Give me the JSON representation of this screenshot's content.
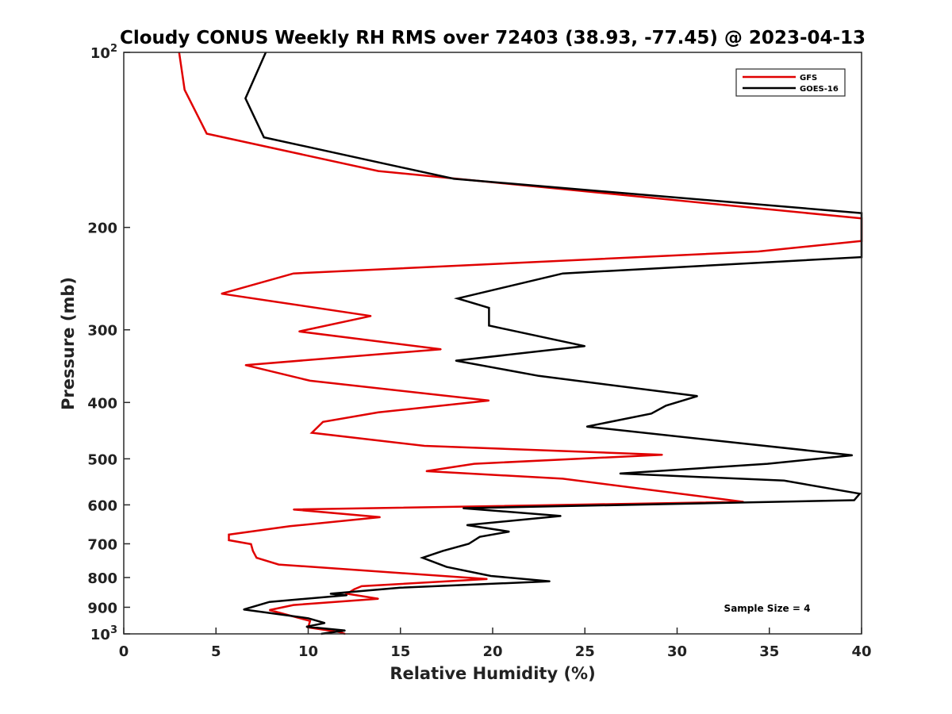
{
  "chart_data": {
    "type": "line",
    "title": "Cloudy CONUS Weekly RH RMS over 72403 (38.93, -77.45) @ 2023-04-13",
    "xlabel": "Relative Humidity (%)",
    "ylabel": "Pressure (mb)",
    "xlim": [
      0,
      40
    ],
    "ylim": [
      100,
      1000
    ],
    "y_scale": "log",
    "y_reversed": true,
    "grid": false,
    "legend_position": "top-right",
    "x_ticks": [
      "0",
      "5",
      "10",
      "15",
      "20",
      "25",
      "30",
      "35",
      "40"
    ],
    "x_tick_values": [
      0,
      5,
      10,
      15,
      20,
      25,
      30,
      35,
      40
    ],
    "y_ticks": [
      {
        "value": 100,
        "base": "10",
        "exp": "2"
      },
      {
        "value": 200,
        "label": "200"
      },
      {
        "value": 300,
        "label": "300"
      },
      {
        "value": 400,
        "label": "400"
      },
      {
        "value": 500,
        "label": "500"
      },
      {
        "value": 600,
        "label": "600"
      },
      {
        "value": 700,
        "label": "700"
      },
      {
        "value": 800,
        "label": "800"
      },
      {
        "value": 900,
        "label": "900"
      },
      {
        "value": 1000,
        "base": "10",
        "exp": "3"
      }
    ],
    "annotation": "Sample Size = 4",
    "series": [
      {
        "name": "GFS",
        "color": "#e00000",
        "points": [
          [
            3.0,
            100
          ],
          [
            3.3,
            116
          ],
          [
            4.5,
            138
          ],
          [
            13.8,
            160
          ],
          [
            40.0,
            193
          ],
          [
            40.0,
            211
          ],
          [
            34.4,
            220
          ],
          [
            9.2,
            240
          ],
          [
            5.3,
            260
          ],
          [
            13.4,
            284
          ],
          [
            9.5,
            302
          ],
          [
            17.2,
            324
          ],
          [
            6.6,
            345
          ],
          [
            10.1,
            367
          ],
          [
            19.8,
            397
          ],
          [
            13.8,
            416
          ],
          [
            10.8,
            432
          ],
          [
            10.2,
            451
          ],
          [
            16.3,
            475
          ],
          [
            29.2,
            492
          ],
          [
            19.0,
            510
          ],
          [
            16.4,
            525
          ],
          [
            23.8,
            541
          ],
          [
            33.6,
            593
          ],
          [
            9.2,
            611
          ],
          [
            13.9,
            630
          ],
          [
            9.0,
            653
          ],
          [
            5.7,
            675
          ],
          [
            5.7,
            690
          ],
          [
            6.9,
            701
          ],
          [
            7.0,
            720
          ],
          [
            7.2,
            740
          ],
          [
            8.4,
            760
          ],
          [
            19.7,
            805
          ],
          [
            12.9,
            828
          ],
          [
            12.5,
            838
          ],
          [
            12.1,
            853
          ],
          [
            13.8,
            870
          ],
          [
            9.2,
            892
          ],
          [
            7.9,
            910
          ],
          [
            10.1,
            950
          ],
          [
            10.0,
            975
          ],
          [
            11.7,
            993
          ],
          [
            12.0,
            1000
          ]
        ]
      },
      {
        "name": "GOES-16",
        "color": "#000000",
        "points": [
          [
            7.7,
            100
          ],
          [
            6.6,
            120
          ],
          [
            7.6,
            140
          ],
          [
            17.9,
            165
          ],
          [
            40.0,
            189
          ],
          [
            40.0,
            225
          ],
          [
            23.8,
            240
          ],
          [
            18.1,
            265
          ],
          [
            19.8,
            275
          ],
          [
            19.8,
            295
          ],
          [
            25.0,
            320
          ],
          [
            18.0,
            339
          ],
          [
            22.5,
            360
          ],
          [
            31.1,
            390
          ],
          [
            29.4,
            405
          ],
          [
            28.6,
            418
          ],
          [
            25.1,
            440
          ],
          [
            39.5,
            493
          ],
          [
            34.9,
            510
          ],
          [
            26.9,
            530
          ],
          [
            35.8,
            545
          ],
          [
            39.9,
            574
          ],
          [
            39.6,
            589
          ],
          [
            18.4,
            608
          ],
          [
            23.7,
            627
          ],
          [
            18.6,
            650
          ],
          [
            20.9,
            667
          ],
          [
            19.3,
            681
          ],
          [
            18.7,
            700
          ],
          [
            17.3,
            720
          ],
          [
            16.2,
            740
          ],
          [
            17.5,
            767
          ],
          [
            19.9,
            795
          ],
          [
            23.1,
            812
          ],
          [
            15.0,
            833
          ],
          [
            11.2,
            853
          ],
          [
            12.1,
            858
          ],
          [
            7.9,
            881
          ],
          [
            6.5,
            908
          ],
          [
            10.0,
            940
          ],
          [
            10.9,
            958
          ],
          [
            9.9,
            972
          ],
          [
            12.0,
            987
          ],
          [
            10.7,
            1000
          ]
        ]
      }
    ]
  }
}
